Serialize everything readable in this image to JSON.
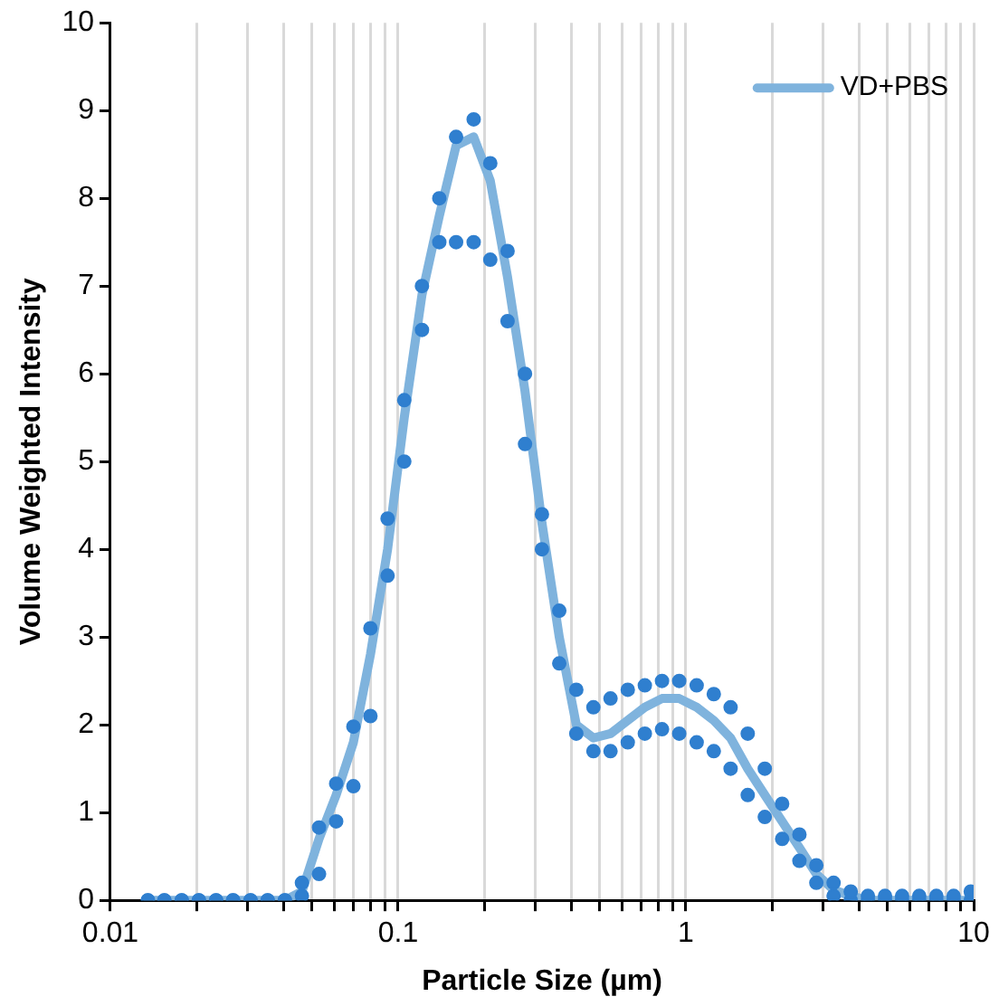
{
  "chart_data": {
    "type": "line",
    "xlabel": "Particle Size (µm)",
    "ylabel": "Volume Weighted Intensity",
    "x": [
      0.0135,
      0.0154,
      0.0177,
      0.0203,
      0.0233,
      0.0267,
      0.0307,
      0.0352,
      0.0404,
      0.0463,
      0.0531,
      0.0609,
      0.0699,
      0.0801,
      0.0919,
      0.105,
      0.121,
      0.139,
      0.159,
      0.183,
      0.209,
      0.24,
      0.276,
      0.316,
      0.363,
      0.416,
      0.477,
      0.547,
      0.628,
      0.72,
      0.826,
      0.948,
      1.09,
      1.25,
      1.43,
      1.64,
      1.88,
      2.16,
      2.48,
      2.84,
      3.26,
      3.74,
      4.29,
      4.92,
      5.64,
      6.47,
      7.42,
      8.52,
      9.77
    ],
    "series": [
      {
        "name": "VD+PBS",
        "marker": "none",
        "color": "#7fb3dd",
        "values": [
          0,
          0,
          0,
          0,
          0,
          0,
          0,
          0,
          0,
          0.1,
          0.7,
          1.2,
          1.8,
          2.8,
          4.0,
          5.5,
          6.9,
          7.8,
          8.6,
          8.7,
          8.2,
          7.1,
          5.8,
          4.3,
          3.0,
          2.0,
          1.85,
          1.9,
          2.05,
          2.2,
          2.3,
          2.3,
          2.2,
          2.05,
          1.85,
          1.5,
          1.2,
          0.9,
          0.6,
          0.3,
          0.12,
          0.05,
          0,
          0,
          0,
          0,
          0,
          0,
          0
        ]
      },
      {
        "type": "scatter",
        "marker": "circle",
        "color": "#2f7fcf",
        "values": [
          0,
          0,
          0,
          0,
          0,
          0,
          0,
          0,
          0,
          0.2,
          0.83,
          1.33,
          1.98,
          3.1,
          4.35,
          5.7,
          7.0,
          8.0,
          8.7,
          8.9,
          8.4,
          7.4,
          6.0,
          4.4,
          3.3,
          2.4,
          2.2,
          2.3,
          2.4,
          2.45,
          2.5,
          2.5,
          2.45,
          2.35,
          2.2,
          1.9,
          1.5,
          1.1,
          0.75,
          0.4,
          0.2,
          0.1,
          0.05,
          0.05,
          0.05,
          0.05,
          0.05,
          0.05,
          0.1
        ]
      },
      {
        "type": "scatter",
        "marker": "circle",
        "color": "#2f7fcf",
        "values": [
          0,
          0,
          0,
          0,
          0,
          0,
          0,
          0,
          0,
          0.05,
          0.3,
          0.9,
          1.3,
          2.1,
          3.7,
          5.0,
          6.5,
          7.5,
          7.5,
          7.5,
          7.3,
          6.6,
          5.2,
          4.0,
          2.7,
          1.9,
          1.7,
          1.7,
          1.8,
          1.9,
          1.95,
          1.9,
          1.8,
          1.7,
          1.5,
          1.2,
          0.95,
          0.7,
          0.45,
          0.2,
          0.05,
          0,
          0,
          0,
          0,
          0,
          0,
          0,
          0
        ]
      }
    ],
    "log": "x",
    "xlim": [
      0.01,
      10
    ],
    "xticks": [
      {
        "value": 0.01,
        "label": "0.01"
      },
      {
        "value": 0.02,
        "label": null
      },
      {
        "value": 0.03,
        "label": null
      },
      {
        "value": 0.04,
        "label": null
      },
      {
        "value": 0.05,
        "label": null
      },
      {
        "value": 0.06,
        "label": null
      },
      {
        "value": 0.07,
        "label": null
      },
      {
        "value": 0.08,
        "label": null
      },
      {
        "value": 0.09,
        "label": null
      },
      {
        "value": 0.1,
        "label": "0.1"
      },
      {
        "value": 0.2,
        "label": null
      },
      {
        "value": 0.3,
        "label": null
      },
      {
        "value": 0.4,
        "label": null
      },
      {
        "value": 0.5,
        "label": null
      },
      {
        "value": 0.6,
        "label": null
      },
      {
        "value": 0.7,
        "label": null
      },
      {
        "value": 0.8,
        "label": null
      },
      {
        "value": 0.9,
        "label": null
      },
      1,
      {
        "value": 2,
        "label": null
      },
      {
        "value": 3,
        "label": null
      },
      {
        "value": 4,
        "label": null
      },
      {
        "value": 5,
        "label": null
      },
      {
        "value": 6,
        "label": null
      },
      {
        "value": 7,
        "label": null
      },
      {
        "value": 8,
        "label": null
      },
      {
        "value": 9,
        "label": null
      },
      10
    ],
    "ylim": [
      0,
      10
    ],
    "yticks": [
      0,
      1,
      2,
      3,
      4,
      5,
      6,
      7,
      8,
      9,
      10
    ],
    "grid": "x",
    "legend": "top right"
  }
}
